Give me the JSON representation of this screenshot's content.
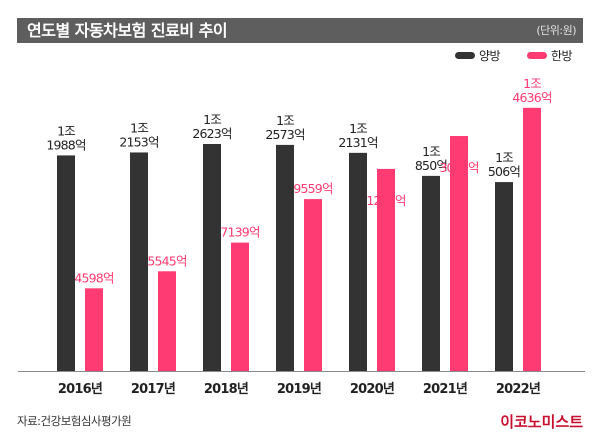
{
  "header": {
    "title": "연도별 자동차보험 진료비 추이",
    "unit": "(단위:원)"
  },
  "legend": [
    {
      "label": "양방",
      "color": "#333333"
    },
    {
      "label": "한방",
      "color": "#ff3b73"
    }
  ],
  "footer": {
    "source": "자료:건강보험심사평가원",
    "brand": "이코노미스트"
  },
  "chart_data": {
    "type": "bar",
    "title": "연도별 자동차보험 진료비 추이",
    "unit": "억원",
    "xlabel": "",
    "ylabel": "",
    "ylim": [
      0,
      16000
    ],
    "grid": false,
    "legend_position": "top-right",
    "categories": [
      "2016년",
      "2017년",
      "2018년",
      "2019년",
      "2020년",
      "2021년",
      "2022년"
    ],
    "series": [
      {
        "name": "양방",
        "color": "#333333",
        "values": [
          11988,
          12153,
          12623,
          12573,
          12131,
          10850,
          10506
        ],
        "labels": [
          [
            "1조",
            "1988억"
          ],
          [
            "1조",
            "2153억"
          ],
          [
            "1조",
            "2623억"
          ],
          [
            "1조",
            "2573억"
          ],
          [
            "1조",
            "2131억"
          ],
          [
            "1조",
            "850억"
          ],
          [
            "1조",
            "506억"
          ]
        ]
      },
      {
        "name": "한방",
        "color": "#ff3b73",
        "values": [
          4598,
          5545,
          7139,
          9559,
          11238,
          13066,
          14636
        ],
        "labels": [
          [
            "4598억"
          ],
          [
            "5545억"
          ],
          [
            "7139억"
          ],
          [
            "9559억"
          ],
          [
            "1조",
            "1238억"
          ],
          [
            "1조",
            "3066억"
          ],
          [
            "1조",
            "4636억"
          ]
        ]
      }
    ]
  }
}
